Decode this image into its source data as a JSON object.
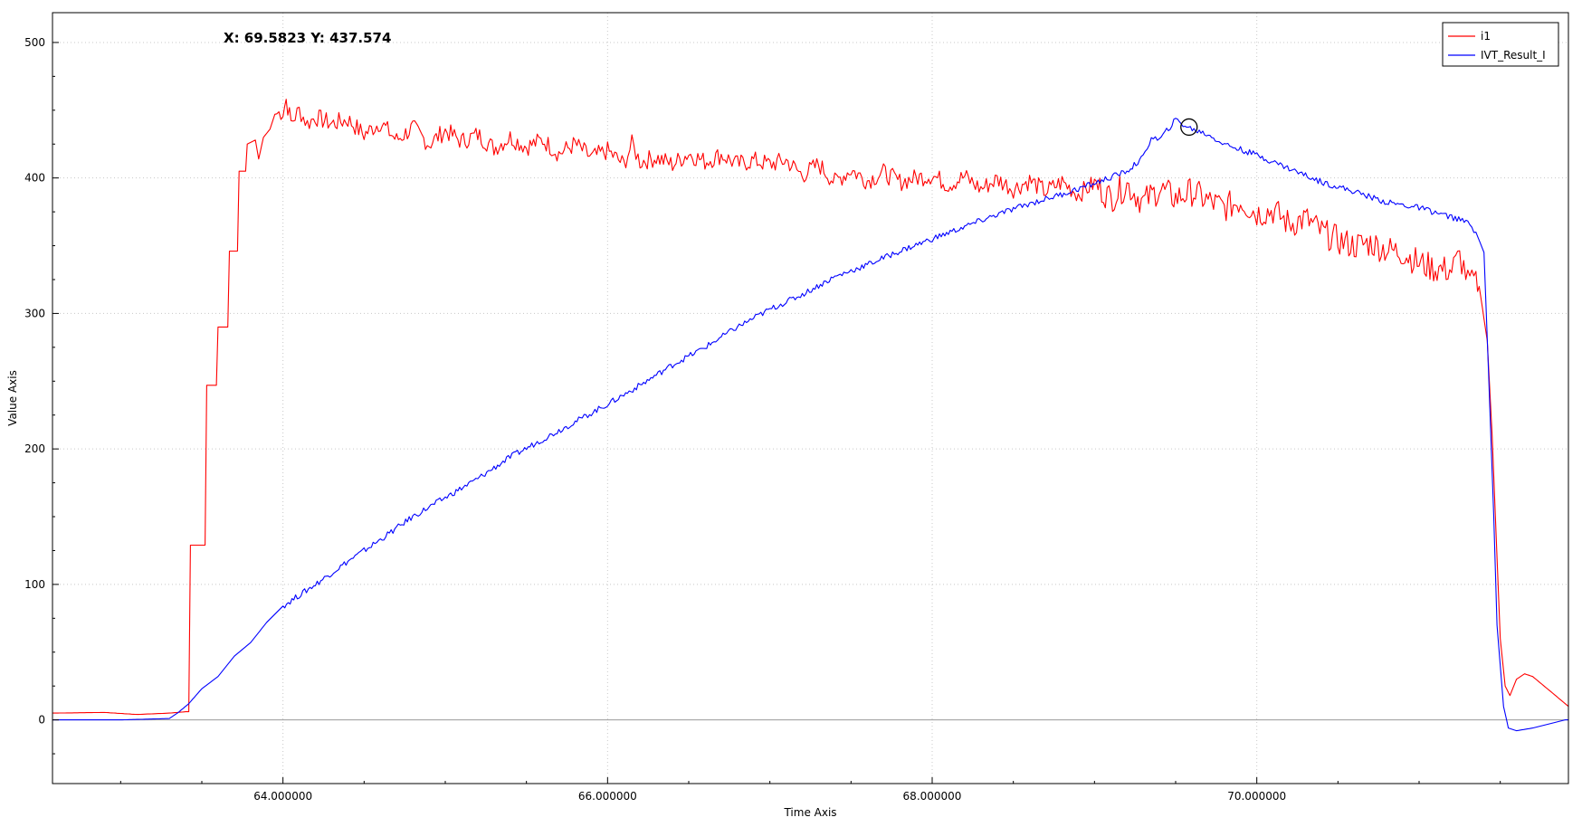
{
  "chart_data": {
    "type": "line",
    "xlabel": "Time Axis",
    "ylabel": "Value Axis",
    "xlim": [
      62.58,
      71.92
    ],
    "ylim": [
      -47,
      522
    ],
    "x_ticks": [
      {
        "value": 64,
        "label": "64.000000"
      },
      {
        "value": 66,
        "label": "66.000000"
      },
      {
        "value": 68,
        "label": "68.000000"
      },
      {
        "value": 70,
        "label": "70.000000"
      }
    ],
    "y_ticks": [
      {
        "value": 0,
        "label": "0"
      },
      {
        "value": 100,
        "label": "100"
      },
      {
        "value": 200,
        "label": "200"
      },
      {
        "value": 300,
        "label": "300"
      },
      {
        "value": 400,
        "label": "400"
      },
      {
        "value": 500,
        "label": "500"
      }
    ],
    "grid": true,
    "legend_position": "top-right",
    "cursor": {
      "x": 69.5823,
      "y": 437.574,
      "readout": "X: 69.5823 Y: 437.574"
    },
    "series": [
      {
        "name": "i1",
        "color": "#ff0000",
        "points": [
          [
            62.58,
            5
          ],
          [
            62.9,
            5.5
          ],
          [
            63.1,
            4
          ],
          [
            63.3,
            5
          ],
          [
            63.4,
            6
          ],
          [
            63.42,
            6
          ],
          [
            63.43,
            129
          ],
          [
            63.52,
            129
          ],
          [
            63.53,
            247
          ],
          [
            63.59,
            247
          ],
          [
            63.6,
            290
          ],
          [
            63.66,
            290
          ],
          [
            63.67,
            346
          ],
          [
            63.72,
            346
          ],
          [
            63.73,
            405
          ],
          [
            63.77,
            405
          ],
          [
            63.78,
            425
          ],
          [
            63.83,
            428
          ],
          [
            63.85,
            414
          ],
          [
            63.88,
            430
          ],
          [
            63.92,
            436
          ],
          [
            63.95,
            447
          ],
          [
            64.0,
            449
          ],
          [
            64.02,
            458
          ],
          [
            64.05,
            441
          ],
          [
            64.1,
            450
          ],
          [
            64.15,
            440
          ],
          [
            64.2,
            445
          ],
          [
            64.3,
            440
          ],
          [
            64.4,
            443
          ],
          [
            64.5,
            432
          ],
          [
            64.6,
            441
          ],
          [
            64.7,
            428
          ],
          [
            64.8,
            437
          ],
          [
            64.9,
            425
          ],
          [
            65.0,
            435
          ],
          [
            65.1,
            427
          ],
          [
            65.2,
            432
          ],
          [
            65.3,
            422
          ],
          [
            65.4,
            430
          ],
          [
            65.5,
            423
          ],
          [
            65.6,
            428
          ],
          [
            65.7,
            418
          ],
          [
            65.8,
            425
          ],
          [
            65.9,
            415
          ],
          [
            66.0,
            420
          ],
          [
            66.1,
            410
          ],
          [
            66.15,
            425
          ],
          [
            66.2,
            412
          ],
          [
            66.3,
            415
          ],
          [
            66.4,
            410
          ],
          [
            66.5,
            418
          ],
          [
            66.6,
            412
          ],
          [
            66.7,
            417
          ],
          [
            66.8,
            410
          ],
          [
            66.9,
            413
          ],
          [
            67.0,
            410
          ],
          [
            67.1,
            413
          ],
          [
            67.2,
            402
          ],
          [
            67.3,
            410
          ],
          [
            67.4,
            397
          ],
          [
            67.5,
            406
          ],
          [
            67.6,
            398
          ],
          [
            67.7,
            404
          ],
          [
            67.8,
            397
          ],
          [
            67.9,
            400
          ],
          [
            68.0,
            402
          ],
          [
            68.1,
            395
          ],
          [
            68.2,
            401
          ],
          [
            68.3,
            392
          ],
          [
            68.4,
            399
          ],
          [
            68.5,
            392
          ],
          [
            68.6,
            398
          ],
          [
            68.7,
            390
          ],
          [
            68.8,
            397
          ],
          [
            68.9,
            388
          ],
          [
            69.0,
            396
          ],
          [
            69.1,
            385
          ],
          [
            69.2,
            395
          ],
          [
            69.3,
            382
          ],
          [
            69.4,
            392
          ],
          [
            69.5,
            385
          ],
          [
            69.6,
            390
          ],
          [
            69.7,
            383
          ],
          [
            69.8,
            378
          ],
          [
            69.9,
            383
          ],
          [
            70.0,
            374
          ],
          [
            70.1,
            376
          ],
          [
            70.2,
            366
          ],
          [
            70.3,
            370
          ],
          [
            70.4,
            360
          ],
          [
            70.5,
            354
          ],
          [
            70.6,
            350
          ],
          [
            70.7,
            352
          ],
          [
            70.8,
            347
          ],
          [
            70.9,
            345
          ],
          [
            71.0,
            337
          ],
          [
            71.1,
            333
          ],
          [
            71.2,
            332
          ],
          [
            71.25,
            342
          ],
          [
            71.3,
            326
          ],
          [
            71.35,
            325
          ],
          [
            71.38,
            312
          ],
          [
            71.42,
            280
          ],
          [
            71.45,
            210
          ],
          [
            71.48,
            120
          ],
          [
            71.5,
            60
          ],
          [
            71.53,
            25
          ],
          [
            71.56,
            18
          ],
          [
            71.6,
            30
          ],
          [
            71.65,
            34
          ],
          [
            71.7,
            32
          ],
          [
            71.8,
            22
          ],
          [
            71.9,
            12
          ],
          [
            71.92,
            10
          ]
        ]
      },
      {
        "name": "IVT_Result_I",
        "color": "#0000ff",
        "points": [
          [
            62.58,
            0
          ],
          [
            63.0,
            0
          ],
          [
            63.3,
            1
          ],
          [
            63.35,
            5
          ],
          [
            63.42,
            12
          ],
          [
            63.5,
            23
          ],
          [
            63.6,
            32
          ],
          [
            63.7,
            47
          ],
          [
            63.8,
            57
          ],
          [
            63.9,
            72
          ],
          [
            64.0,
            84
          ],
          [
            64.2,
            100
          ],
          [
            64.4,
            117
          ],
          [
            64.6,
            133
          ],
          [
            64.8,
            150
          ],
          [
            65.0,
            164
          ],
          [
            65.2,
            178
          ],
          [
            65.4,
            194
          ],
          [
            65.6,
            207
          ],
          [
            65.8,
            220
          ],
          [
            66.0,
            233
          ],
          [
            66.2,
            247
          ],
          [
            66.4,
            262
          ],
          [
            66.6,
            275
          ],
          [
            66.8,
            290
          ],
          [
            67.0,
            303
          ],
          [
            67.2,
            314
          ],
          [
            67.4,
            327
          ],
          [
            67.6,
            336
          ],
          [
            67.8,
            346
          ],
          [
            68.0,
            355
          ],
          [
            68.2,
            364
          ],
          [
            68.4,
            373
          ],
          [
            68.6,
            381
          ],
          [
            68.8,
            388
          ],
          [
            69.0,
            396
          ],
          [
            69.2,
            405
          ],
          [
            69.3,
            415
          ],
          [
            69.35,
            430
          ],
          [
            69.4,
            428
          ],
          [
            69.5,
            443
          ],
          [
            69.58,
            437
          ],
          [
            69.7,
            432
          ],
          [
            69.8,
            425
          ],
          [
            70.0,
            417
          ],
          [
            70.2,
            407
          ],
          [
            70.4,
            397
          ],
          [
            70.6,
            390
          ],
          [
            70.8,
            382
          ],
          [
            71.0,
            378
          ],
          [
            71.2,
            371
          ],
          [
            71.3,
            367
          ],
          [
            71.35,
            360
          ],
          [
            71.4,
            345
          ],
          [
            71.43,
            250
          ],
          [
            71.46,
            150
          ],
          [
            71.48,
            70
          ],
          [
            71.52,
            10
          ],
          [
            71.55,
            -6
          ],
          [
            71.6,
            -8
          ],
          [
            71.7,
            -6
          ],
          [
            71.8,
            -3
          ],
          [
            71.9,
            0
          ],
          [
            71.92,
            0
          ]
        ]
      }
    ]
  }
}
